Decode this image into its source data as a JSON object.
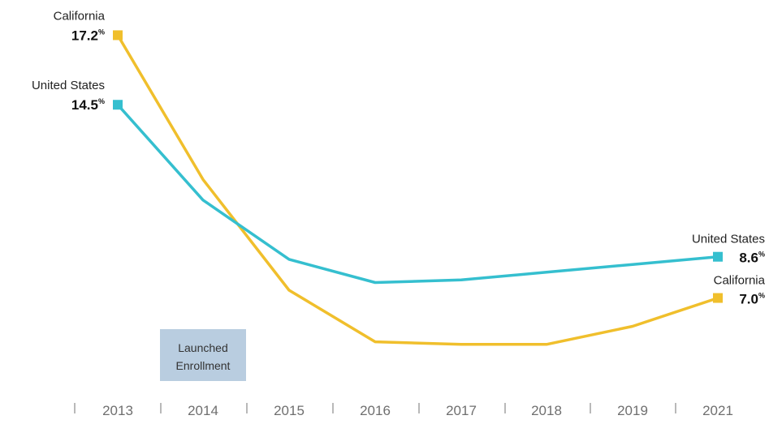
{
  "chart_data": {
    "type": "line",
    "x": [
      "2013",
      "2014",
      "2015",
      "2016",
      "2017",
      "2018",
      "2019",
      "2021"
    ],
    "series": [
      {
        "name": "California",
        "color": "#f0bf2c",
        "values": [
          17.2,
          11.6,
          7.3,
          5.3,
          5.2,
          5.2,
          5.9,
          7.0
        ],
        "start_label": "California",
        "start_value": "17.2",
        "end_label": "California",
        "end_value": "7.0"
      },
      {
        "name": "United States",
        "color": "#35bfcf",
        "values": [
          14.5,
          10.8,
          8.5,
          7.6,
          7.7,
          8.0,
          8.3,
          8.6
        ],
        "start_label": "United States",
        "start_value": "14.5",
        "end_label": "United States",
        "end_value": "8.6"
      }
    ],
    "unit": "%",
    "ylim": [
      0,
      18
    ],
    "grid": false,
    "legend": "none",
    "annotation": {
      "lines": [
        "Launched",
        "Enrollment"
      ],
      "x_from": "2014",
      "color": "#b9cde0"
    }
  }
}
